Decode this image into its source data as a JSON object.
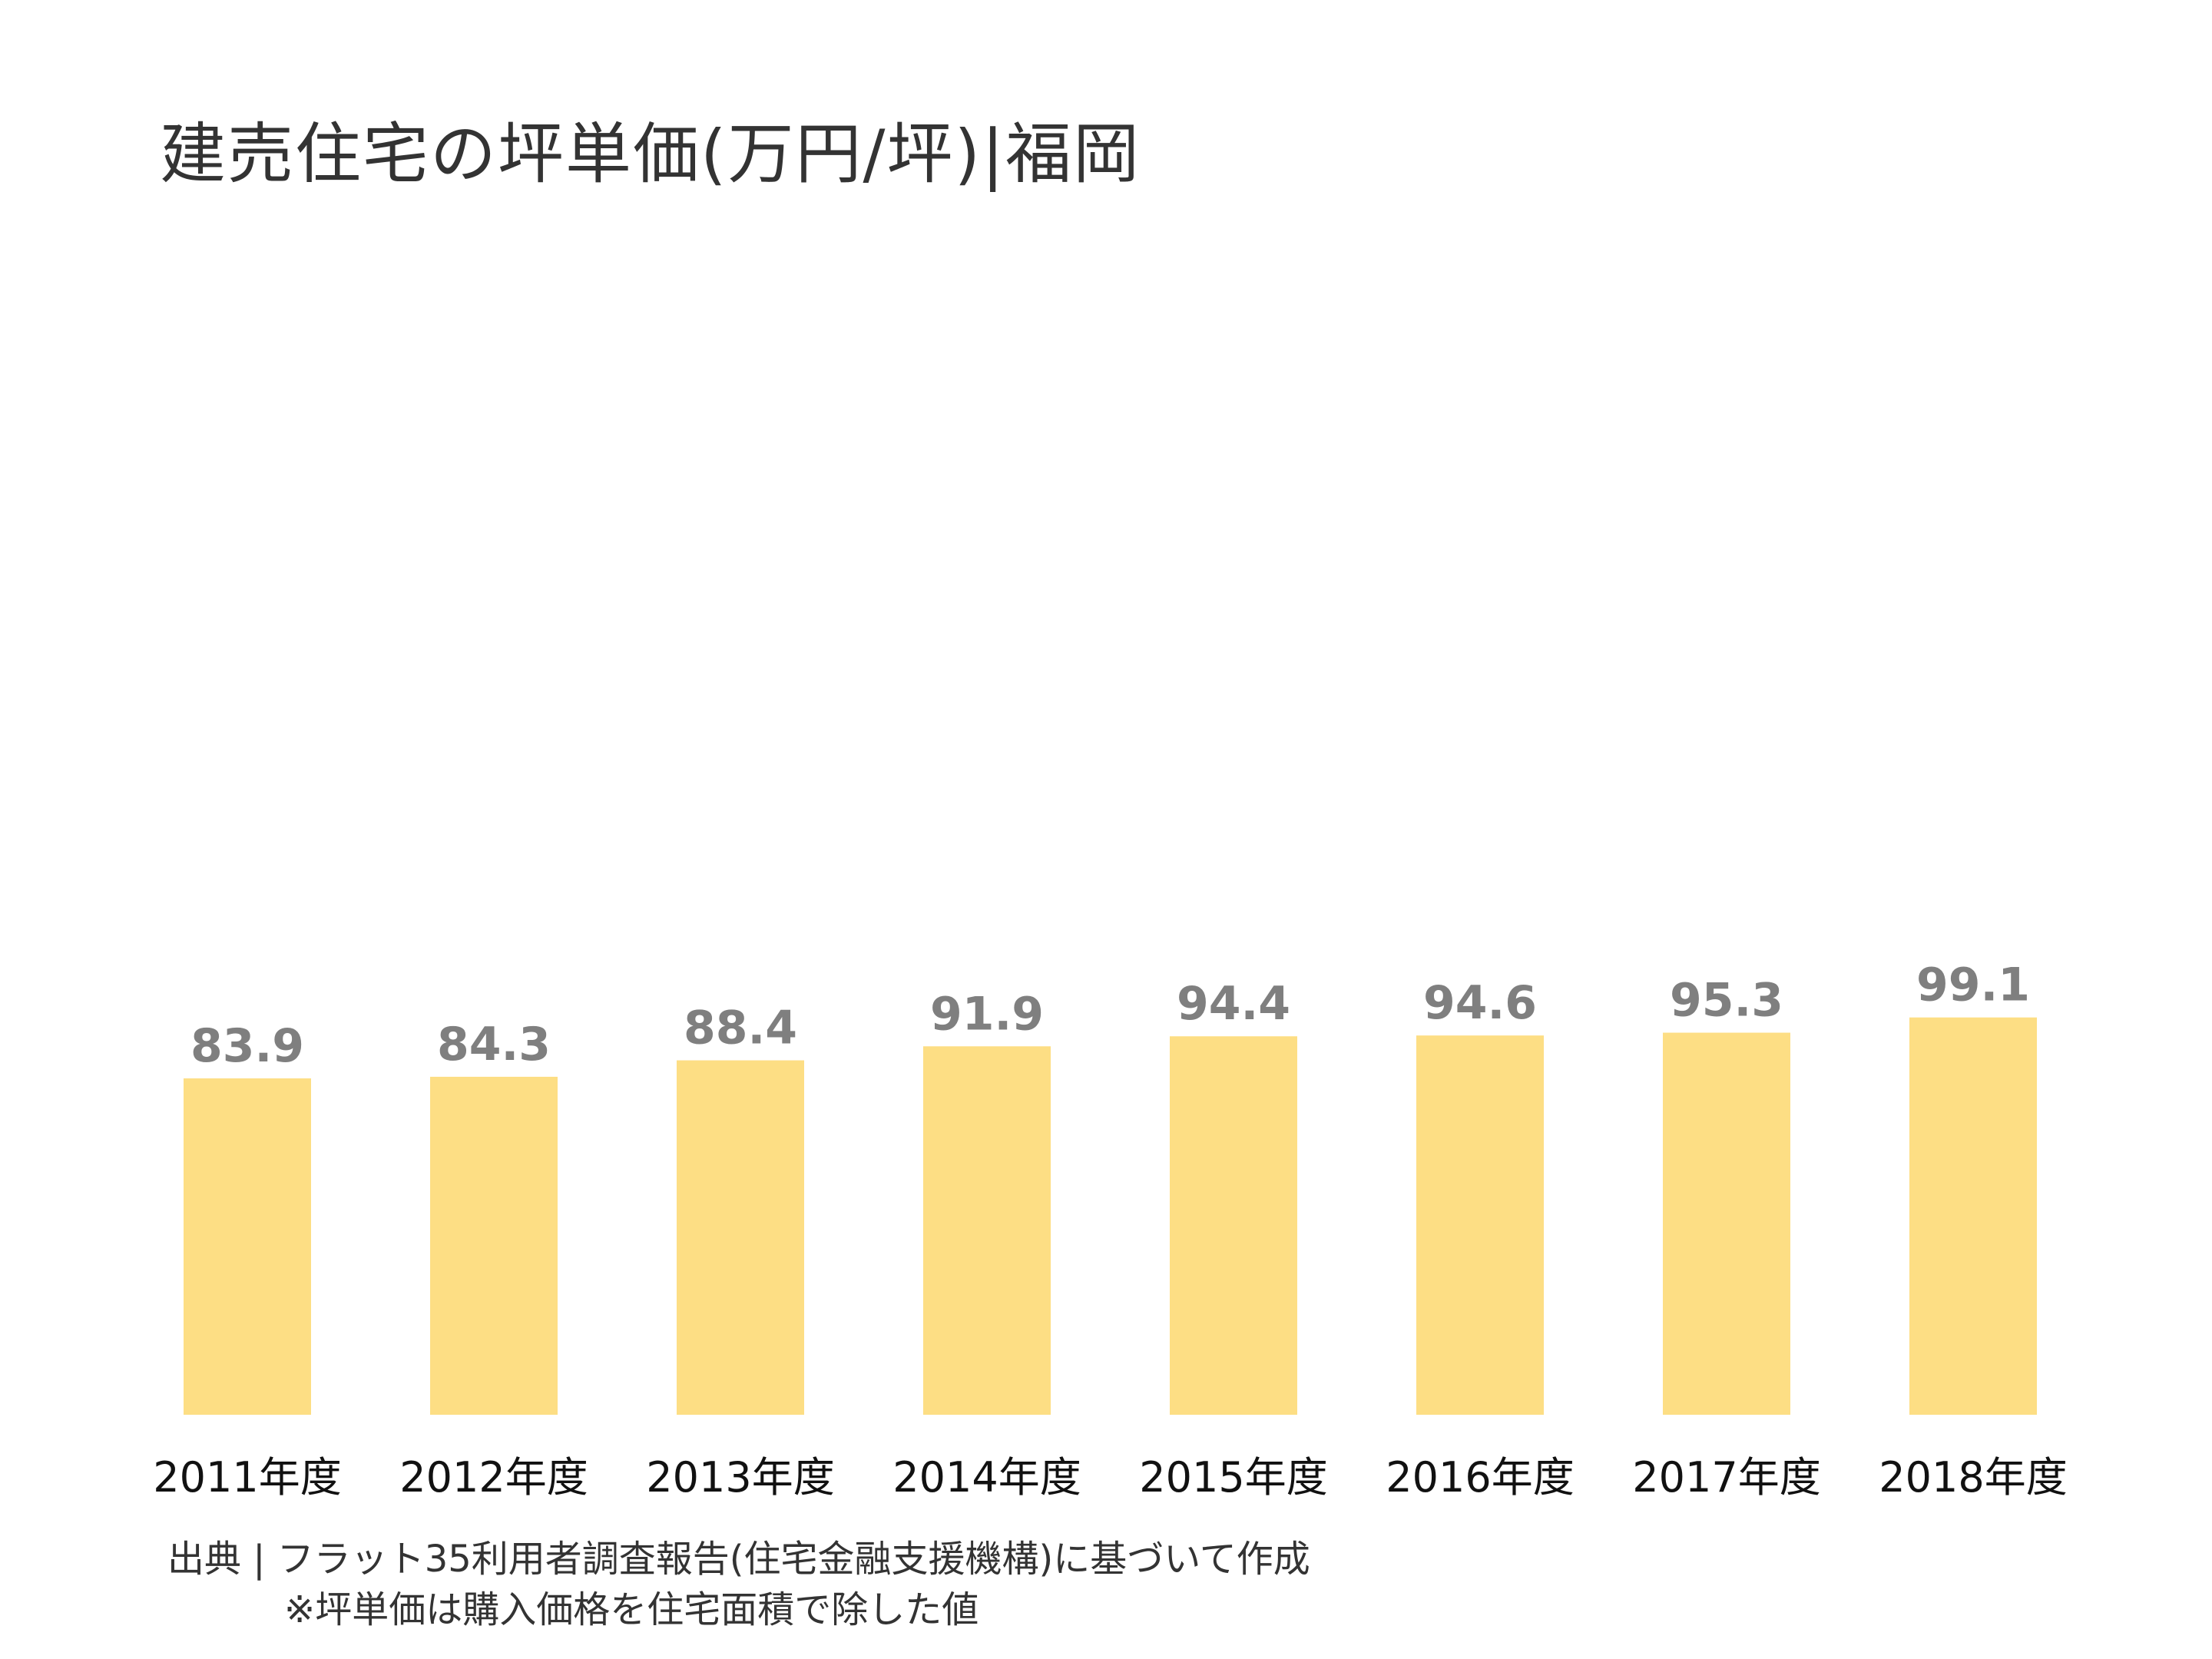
{
  "header": {
    "title": "建売住宅の坪単価(万円/坪)|福岡"
  },
  "chart_data": {
    "type": "bar",
    "title": "建売住宅の坪単価(万円/坪)|福岡",
    "categories": [
      "2011年度",
      "2012年度",
      "2013年度",
      "2014年度",
      "2015年度",
      "2016年度",
      "2017年度",
      "2018年度"
    ],
    "values": [
      83.9,
      84.3,
      88.4,
      91.9,
      94.4,
      94.6,
      95.3,
      99.1
    ],
    "value_labels": [
      "83.9",
      "84.3",
      "88.4",
      "91.9",
      "94.4",
      "94.6",
      "95.3",
      "99.1"
    ],
    "ylim": [
      0,
      100
    ],
    "grid": false,
    "legend": "none",
    "bar_color": "#FDDE84",
    "label_color": "#7F7F7F"
  },
  "footer": {
    "source": "出典 | フラット35利用者調査報告(住宅金融支援機構)に基づいて作成",
    "note": "※坪単価は購入価格を住宅面積で除した値"
  }
}
